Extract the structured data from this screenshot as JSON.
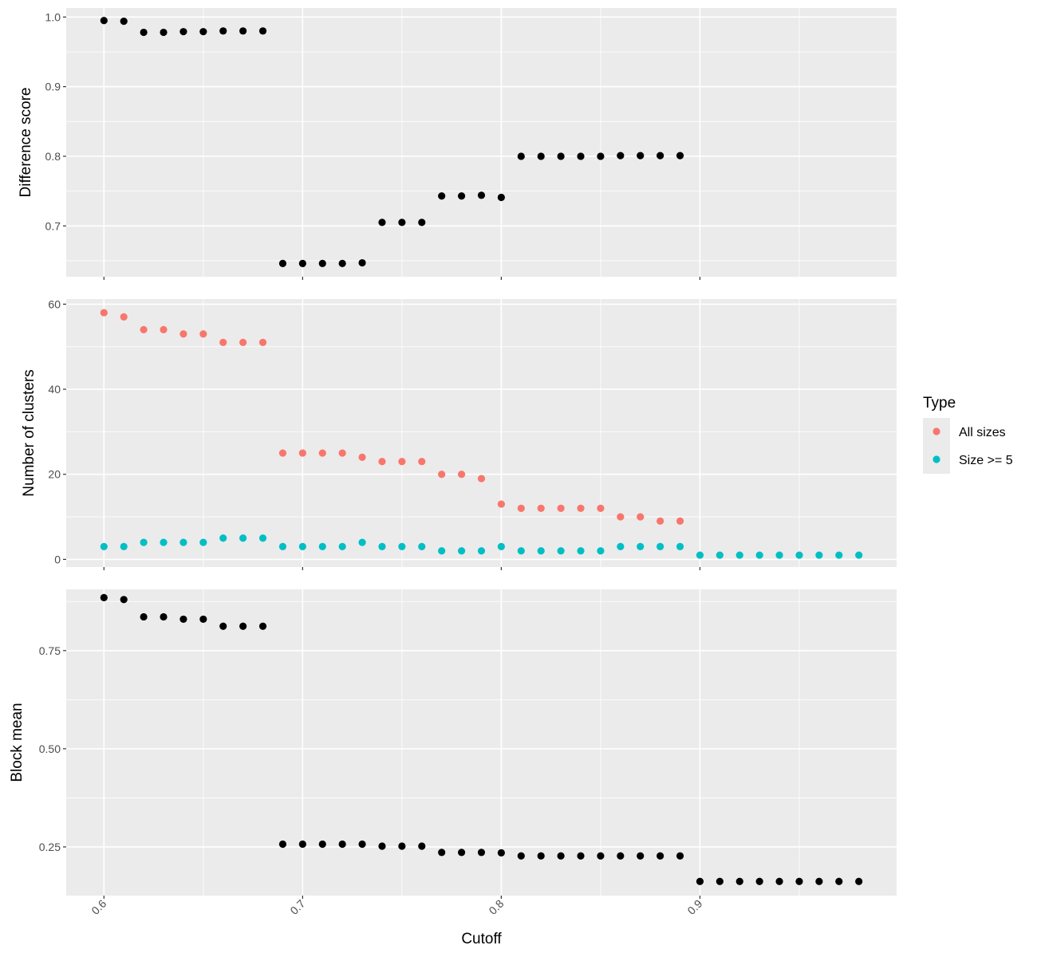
{
  "chart_data": {
    "type": "scatter",
    "x_label": "Cutoff",
    "x_ticks": [
      "0.6",
      "0.7",
      "0.8",
      "0.9"
    ],
    "x_range": [
      0.581,
      0.999
    ],
    "legend": {
      "title": "Type",
      "position": "right",
      "entries": [
        {
          "name": "All sizes",
          "color": "#F8766D"
        },
        {
          "name": "Size >= 5",
          "color": "#00BFC4"
        }
      ]
    },
    "panels": [
      {
        "y_label": "Difference score",
        "y_ticks": [
          "0.7",
          "0.8",
          "0.9",
          "1.0"
        ],
        "y_range": [
          0.627,
          1.013
        ],
        "series": [
          {
            "color": "#000000",
            "points": [
              [
                0.6,
                0.995
              ],
              [
                0.61,
                0.994
              ],
              [
                0.62,
                0.978
              ],
              [
                0.63,
                0.978
              ],
              [
                0.64,
                0.979
              ],
              [
                0.65,
                0.979
              ],
              [
                0.66,
                0.98
              ],
              [
                0.67,
                0.98
              ],
              [
                0.68,
                0.98
              ],
              [
                0.69,
                0.646
              ],
              [
                0.7,
                0.646
              ],
              [
                0.71,
                0.646
              ],
              [
                0.72,
                0.646
              ],
              [
                0.73,
                0.647
              ],
              [
                0.74,
                0.705
              ],
              [
                0.75,
                0.705
              ],
              [
                0.76,
                0.705
              ],
              [
                0.77,
                0.743
              ],
              [
                0.78,
                0.743
              ],
              [
                0.79,
                0.744
              ],
              [
                0.8,
                0.741
              ],
              [
                0.81,
                0.8
              ],
              [
                0.82,
                0.8
              ],
              [
                0.83,
                0.8
              ],
              [
                0.84,
                0.8
              ],
              [
                0.85,
                0.8
              ],
              [
                0.86,
                0.801
              ],
              [
                0.87,
                0.801
              ],
              [
                0.88,
                0.801
              ],
              [
                0.89,
                0.801
              ]
            ]
          }
        ]
      },
      {
        "y_label": "Number of clusters",
        "y_ticks": [
          "0",
          "20",
          "40",
          "60"
        ],
        "y_range": [
          -1.8,
          61.2
        ],
        "series": [
          {
            "name": "All sizes",
            "color": "#F8766D",
            "points": [
              [
                0.6,
                58
              ],
              [
                0.61,
                57
              ],
              [
                0.62,
                54
              ],
              [
                0.63,
                54
              ],
              [
                0.64,
                53
              ],
              [
                0.65,
                53
              ],
              [
                0.66,
                51
              ],
              [
                0.67,
                51
              ],
              [
                0.68,
                51
              ],
              [
                0.69,
                25
              ],
              [
                0.7,
                25
              ],
              [
                0.71,
                25
              ],
              [
                0.72,
                25
              ],
              [
                0.73,
                24
              ],
              [
                0.74,
                23
              ],
              [
                0.75,
                23
              ],
              [
                0.76,
                23
              ],
              [
                0.77,
                20
              ],
              [
                0.78,
                20
              ],
              [
                0.79,
                19
              ],
              [
                0.8,
                13
              ],
              [
                0.81,
                12
              ],
              [
                0.82,
                12
              ],
              [
                0.83,
                12
              ],
              [
                0.84,
                12
              ],
              [
                0.85,
                12
              ],
              [
                0.86,
                10
              ],
              [
                0.87,
                10
              ],
              [
                0.88,
                9
              ],
              [
                0.89,
                9
              ]
            ]
          },
          {
            "name": "Size >= 5",
            "color": "#00BFC4",
            "points": [
              [
                0.6,
                3
              ],
              [
                0.61,
                3
              ],
              [
                0.62,
                4
              ],
              [
                0.63,
                4
              ],
              [
                0.64,
                4
              ],
              [
                0.65,
                4
              ],
              [
                0.66,
                5
              ],
              [
                0.67,
                5
              ],
              [
                0.68,
                5
              ],
              [
                0.69,
                3
              ],
              [
                0.7,
                3
              ],
              [
                0.71,
                3
              ],
              [
                0.72,
                3
              ],
              [
                0.73,
                4
              ],
              [
                0.74,
                3
              ],
              [
                0.75,
                3
              ],
              [
                0.76,
                3
              ],
              [
                0.77,
                2
              ],
              [
                0.78,
                2
              ],
              [
                0.79,
                2
              ],
              [
                0.8,
                3
              ],
              [
                0.81,
                2
              ],
              [
                0.82,
                2
              ],
              [
                0.83,
                2
              ],
              [
                0.84,
                2
              ],
              [
                0.85,
                2
              ],
              [
                0.86,
                3
              ],
              [
                0.87,
                3
              ],
              [
                0.88,
                3
              ],
              [
                0.89,
                3
              ],
              [
                0.9,
                1
              ],
              [
                0.91,
                1
              ],
              [
                0.92,
                1
              ],
              [
                0.93,
                1
              ],
              [
                0.94,
                1
              ],
              [
                0.95,
                1
              ],
              [
                0.96,
                1
              ],
              [
                0.97,
                1
              ],
              [
                0.98,
                1
              ]
            ]
          }
        ]
      },
      {
        "y_label": "Block mean",
        "y_ticks": [
          "0.25",
          "0.50",
          "0.75"
        ],
        "y_range": [
          0.126,
          0.906
        ],
        "series": [
          {
            "color": "#000000",
            "points": [
              [
                0.6,
                0.885
              ],
              [
                0.61,
                0.88
              ],
              [
                0.62,
                0.836
              ],
              [
                0.63,
                0.836
              ],
              [
                0.64,
                0.83
              ],
              [
                0.65,
                0.83
              ],
              [
                0.66,
                0.812
              ],
              [
                0.67,
                0.812
              ],
              [
                0.68,
                0.812
              ],
              [
                0.69,
                0.257
              ],
              [
                0.7,
                0.257
              ],
              [
                0.71,
                0.257
              ],
              [
                0.72,
                0.257
              ],
              [
                0.73,
                0.257
              ],
              [
                0.74,
                0.252
              ],
              [
                0.75,
                0.252
              ],
              [
                0.76,
                0.252
              ],
              [
                0.77,
                0.236
              ],
              [
                0.78,
                0.236
              ],
              [
                0.79,
                0.236
              ],
              [
                0.8,
                0.235
              ],
              [
                0.81,
                0.227
              ],
              [
                0.82,
                0.227
              ],
              [
                0.83,
                0.227
              ],
              [
                0.84,
                0.227
              ],
              [
                0.85,
                0.227
              ],
              [
                0.86,
                0.227
              ],
              [
                0.87,
                0.227
              ],
              [
                0.88,
                0.227
              ],
              [
                0.89,
                0.227
              ],
              [
                0.9,
                0.162
              ],
              [
                0.91,
                0.162
              ],
              [
                0.92,
                0.162
              ],
              [
                0.93,
                0.162
              ],
              [
                0.94,
                0.162
              ],
              [
                0.95,
                0.162
              ],
              [
                0.96,
                0.162
              ],
              [
                0.97,
                0.162
              ],
              [
                0.98,
                0.162
              ]
            ]
          }
        ]
      }
    ]
  }
}
